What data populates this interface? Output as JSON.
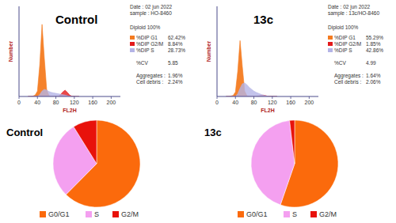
{
  "chart_data": [
    {
      "type": "area",
      "title": "Control",
      "xlabel": "FL2H",
      "ylabel": "Number",
      "info": [
        "Date : 02 jun 2022",
        "sample : HO-8460",
        "Diploid 100%"
      ],
      "stats": [
        "62.42%",
        "8.84%",
        "28.73%"
      ],
      "notes": [
        [
          "%CV",
          "5.85"
        ],
        [
          "Aggregates :",
          "1.96%"
        ],
        [
          "Cell debris :",
          "2.24%"
        ]
      ],
      "x": [
        20,
        25,
        30,
        35,
        40,
        45,
        50,
        55,
        60,
        65,
        70,
        75,
        80,
        85,
        90,
        95,
        100,
        105,
        110,
        115,
        120,
        125,
        130
      ],
      "series": [
        {
          "name": "%DIP G1",
          "color": "#f47b20",
          "values": [
            0,
            0,
            5,
            15,
            60,
            350,
            800,
            420,
            80,
            10,
            0,
            0,
            0,
            0,
            0,
            0,
            0,
            0,
            0,
            0,
            0,
            0,
            0
          ]
        },
        {
          "name": "%DIP G2/M",
          "color": "#e31a1c",
          "values": [
            0,
            0,
            0,
            0,
            0,
            0,
            0,
            0,
            0,
            0,
            0,
            0,
            0,
            0,
            20,
            50,
            70,
            45,
            15,
            3,
            0,
            0,
            0
          ]
        },
        {
          "name": "%DIP S",
          "color": "#b4b4e6",
          "values": [
            0,
            0,
            0,
            0,
            0,
            20,
            60,
            80,
            70,
            55,
            45,
            40,
            35,
            30,
            25,
            20,
            15,
            8,
            3,
            0,
            0,
            0,
            0
          ]
        }
      ],
      "xlim": [
        0,
        220
      ],
      "xticks": [
        0,
        40,
        80,
        120,
        160,
        200
      ],
      "ylim": [
        0,
        1000
      ],
      "tick_labels": "x",
      "legend": "right"
    },
    {
      "type": "area",
      "title": "13c",
      "xlabel": "FL2H",
      "ylabel": "Number",
      "info": [
        "Date : 02 jun 2022",
        "sample : 13c/HO-8460",
        "Diploid 100%"
      ],
      "stats": [
        "55.29%",
        "1.85%",
        "42.86%"
      ],
      "notes": [
        [
          "%CV",
          "4.99"
        ],
        [
          "Aggregates :",
          "1.64%"
        ],
        [
          "Cell debris :",
          "2.06%"
        ]
      ],
      "x": [
        20,
        25,
        30,
        35,
        40,
        45,
        50,
        55,
        60,
        65,
        70,
        75,
        80,
        85,
        90,
        95,
        100,
        105,
        110,
        115,
        120,
        125,
        130
      ],
      "series": [
        {
          "name": "%DIP G1",
          "color": "#f47b20",
          "values": [
            0,
            0,
            5,
            12,
            50,
            280,
            620,
            330,
            60,
            8,
            0,
            0,
            0,
            0,
            0,
            0,
            0,
            0,
            0,
            0,
            0,
            0,
            0
          ]
        },
        {
          "name": "%DIP G2/M",
          "color": "#e31a1c",
          "values": [
            0,
            0,
            0,
            0,
            0,
            0,
            0,
            0,
            0,
            0,
            0,
            0,
            0,
            0,
            5,
            12,
            15,
            10,
            3,
            0,
            0,
            0,
            0
          ]
        },
        {
          "name": "%DIP S",
          "color": "#b4b4e6",
          "values": [
            0,
            0,
            0,
            0,
            0,
            30,
            90,
            140,
            150,
            130,
            100,
            80,
            60,
            45,
            35,
            25,
            15,
            8,
            3,
            0,
            0,
            0,
            0
          ]
        }
      ],
      "xlim": [
        0,
        220
      ],
      "xticks": [
        0,
        40,
        80,
        120,
        160,
        200
      ],
      "ylim": [
        0,
        1000
      ],
      "tick_labels": "x",
      "legend": "right"
    },
    {
      "type": "pie",
      "title": "Control",
      "categories": [
        "G0/G1",
        "S",
        "G2/M"
      ],
      "values": [
        62.42,
        28.73,
        8.84
      ],
      "colors": [
        "#fb6a0c",
        "#f4a0f0",
        "#e8120b"
      ],
      "legend": "bottom"
    },
    {
      "type": "pie",
      "title": "13c",
      "categories": [
        "G0/G1",
        "S",
        "G2/M"
      ],
      "values": [
        55.29,
        42.86,
        1.85
      ],
      "colors": [
        "#fb6a0c",
        "#f4a0f0",
        "#e8120b"
      ],
      "legend": "bottom"
    }
  ]
}
